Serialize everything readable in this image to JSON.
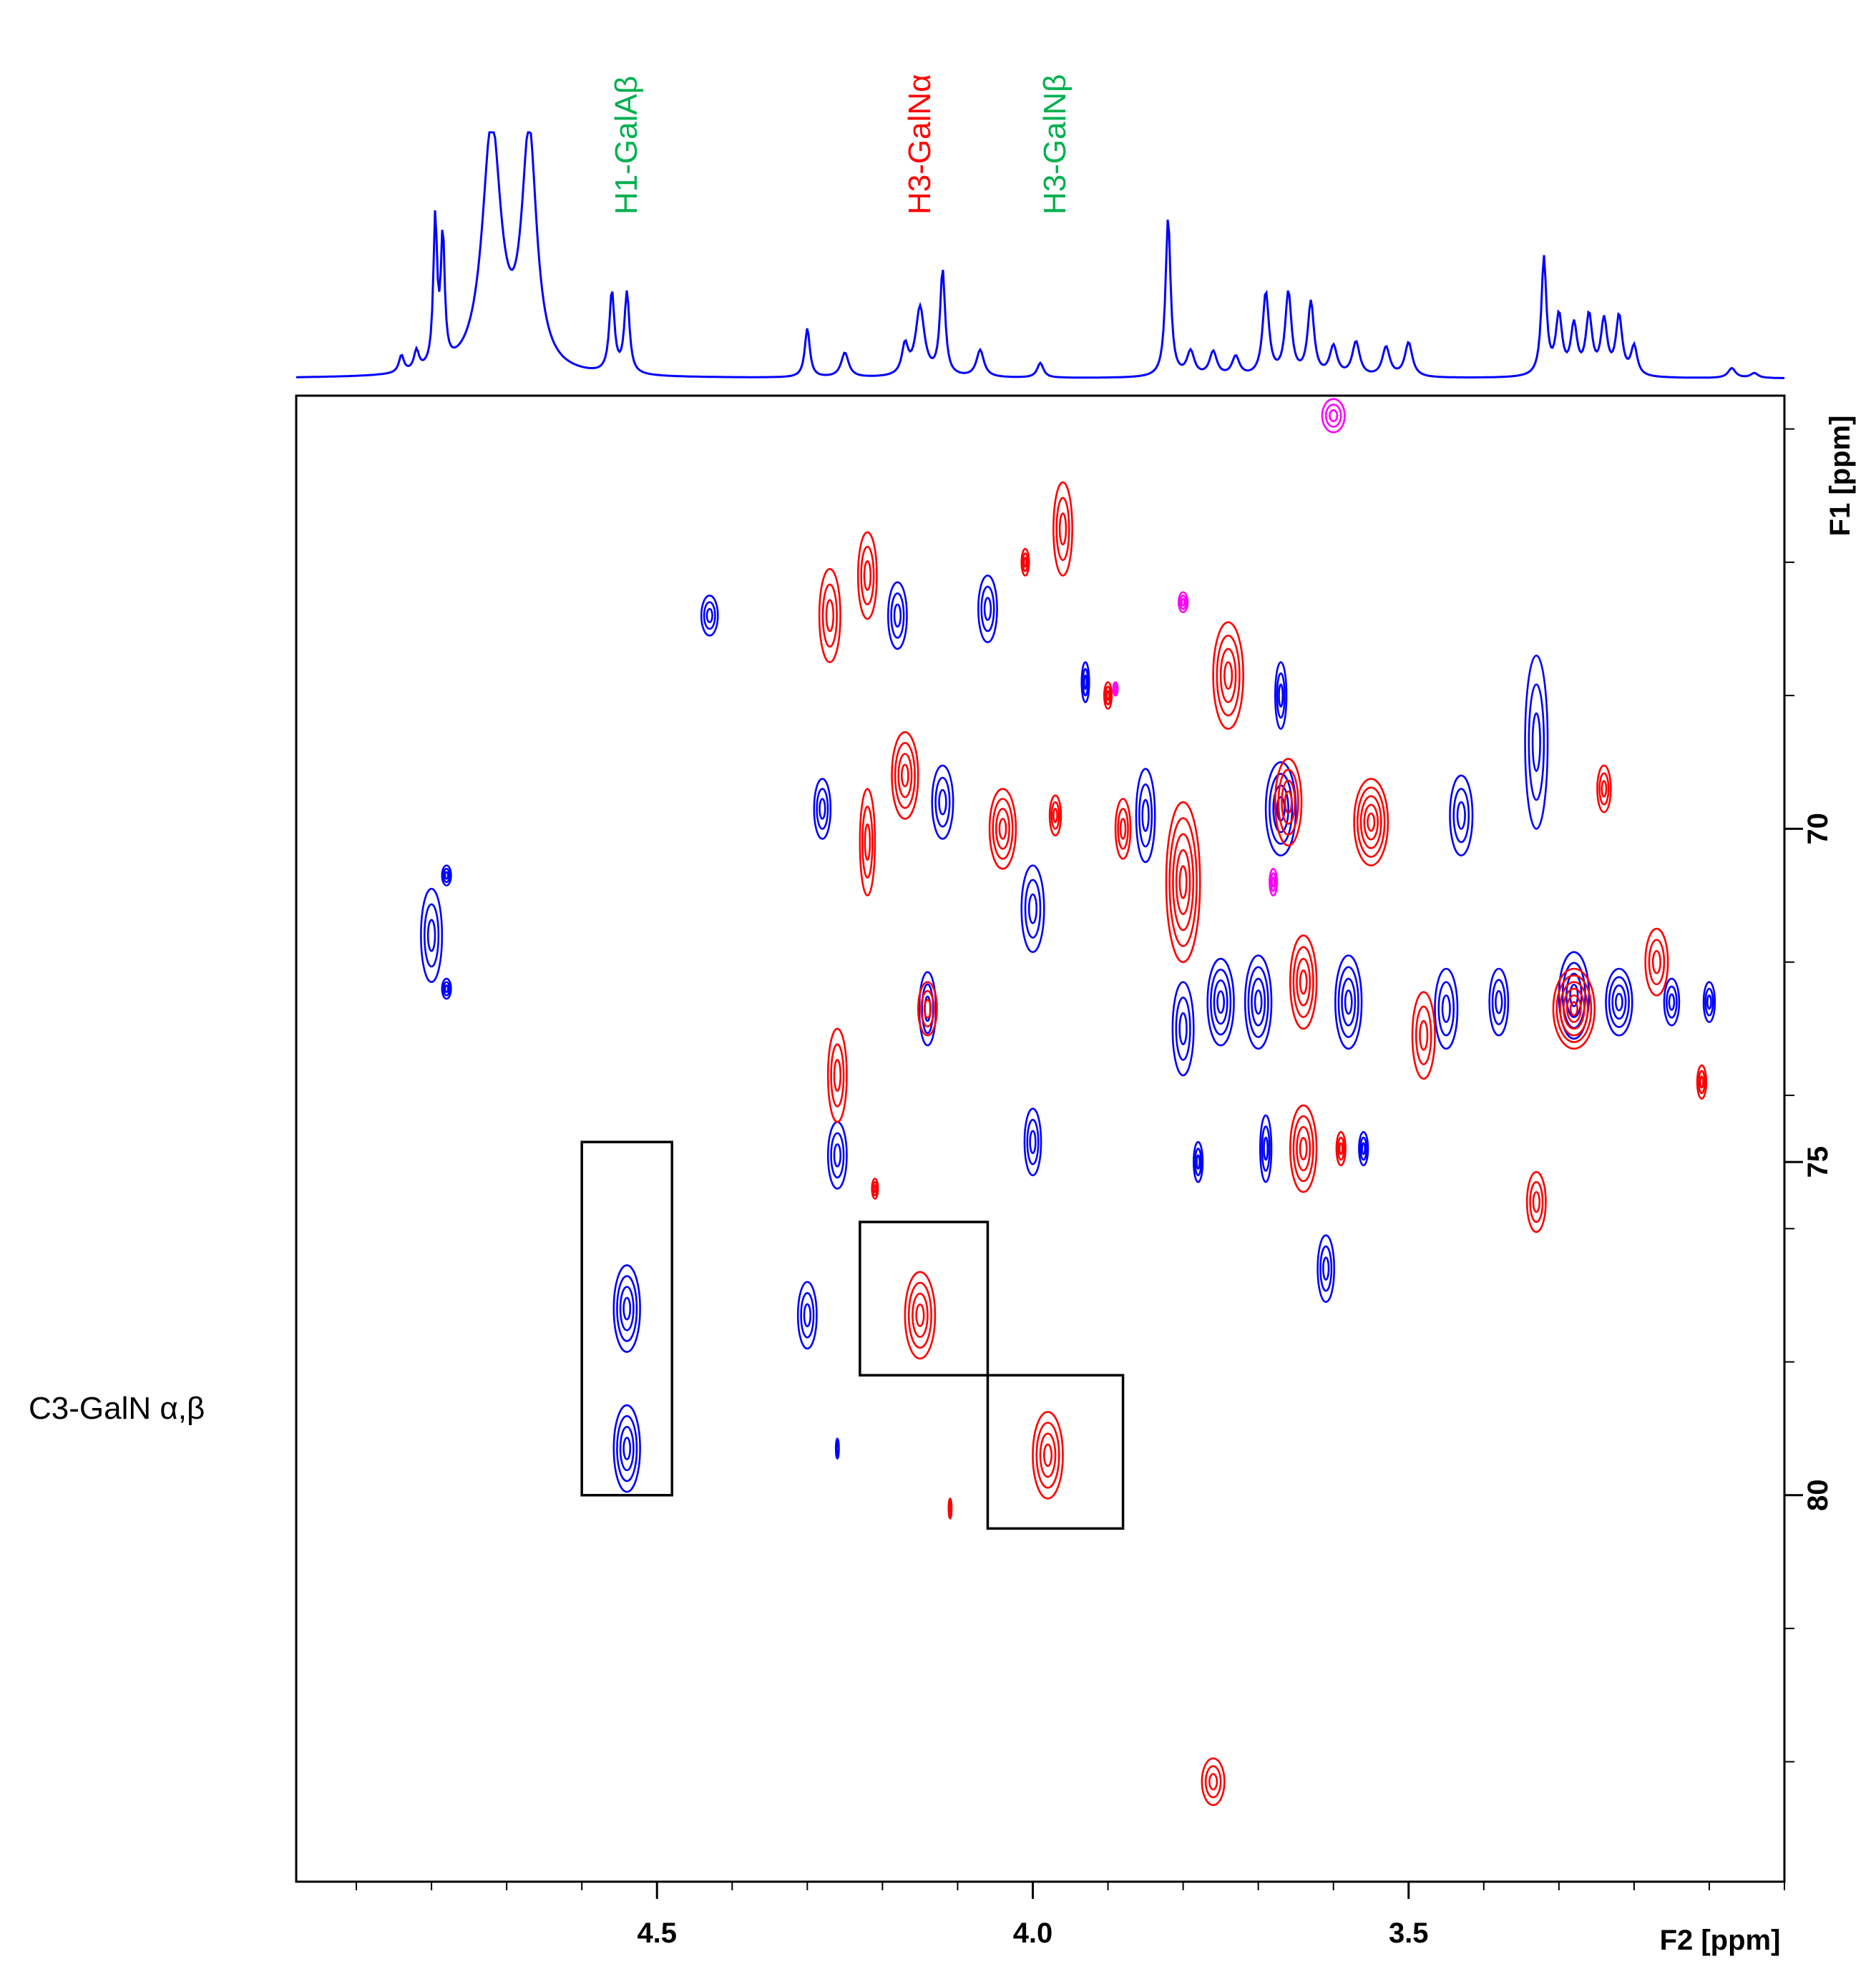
{
  "chart_data": {
    "type": "2d-nmr-hsqc",
    "title": "",
    "x_axis": {
      "label": "F2 [ppm]",
      "range": [
        4.98,
        3.0
      ],
      "ticks": [
        4.5,
        4.0,
        3.5
      ],
      "tick_labels": [
        "4.5",
        "4.0",
        "3.5"
      ],
      "minor_step": 0.1
    },
    "y_axis": {
      "label": "F1 [ppm]",
      "range": [
        63.5,
        85.8
      ],
      "ticks": [
        70,
        75,
        80
      ],
      "tick_labels": [
        "70",
        "75",
        "80"
      ],
      "minor_step": 2
    },
    "side_label": "C3-GalN α,β",
    "peak_labels": [
      {
        "text": "H1-GalAβ",
        "ppm": 4.54,
        "color": "#00b050"
      },
      {
        "text": "H3-GalNα",
        "ppm": 4.15,
        "color": "#ff0000"
      },
      {
        "text": "H3-GalNβ",
        "ppm": 3.97,
        "color": "#00b050"
      }
    ],
    "series_colors": {
      "positive": "#0000ff",
      "negative": "#ff0000",
      "other": "#ff00ff",
      "spectrum": "#0000ff",
      "boxes": "#000000"
    },
    "highlight_boxes": [
      {
        "x": [
          4.6,
          4.48
        ],
        "y": [
          74.7,
          80.0
        ]
      },
      {
        "x": [
          4.23,
          4.06
        ],
        "y": [
          75.9,
          78.2
        ]
      },
      {
        "x": [
          4.06,
          3.88
        ],
        "y": [
          78.2,
          80.5
        ]
      }
    ],
    "blue_peaks": [
      [
        4.8,
        71.6,
        0.028,
        1.4
      ],
      [
        4.78,
        70.7,
        0.012,
        0.3
      ],
      [
        4.78,
        72.4,
        0.012,
        0.3
      ],
      [
        4.54,
        77.2,
        0.035,
        1.3
      ],
      [
        4.54,
        79.3,
        0.035,
        1.3
      ],
      [
        4.43,
        66.8,
        0.022,
        0.6
      ],
      [
        4.3,
        77.3,
        0.025,
        1.0
      ],
      [
        4.26,
        74.9,
        0.025,
        1.0
      ],
      [
        4.26,
        79.3,
        0.004,
        0.3
      ],
      [
        4.28,
        69.7,
        0.022,
        0.9
      ],
      [
        4.18,
        66.8,
        0.025,
        1.0
      ],
      [
        4.12,
        69.6,
        0.028,
        1.1
      ],
      [
        4.14,
        72.7,
        0.022,
        1.1
      ],
      [
        4.06,
        66.7,
        0.025,
        1.0
      ],
      [
        4.0,
        74.7,
        0.022,
        1.0
      ],
      [
        4.0,
        71.2,
        0.03,
        1.3
      ],
      [
        3.93,
        67.8,
        0.01,
        0.6
      ],
      [
        3.85,
        69.8,
        0.025,
        1.4
      ],
      [
        3.8,
        73.0,
        0.028,
        1.4
      ],
      [
        3.75,
        72.6,
        0.035,
        1.3
      ],
      [
        3.78,
        75.0,
        0.012,
        0.6
      ],
      [
        3.7,
        72.6,
        0.035,
        1.4
      ],
      [
        3.69,
        74.8,
        0.015,
        1.0
      ],
      [
        3.67,
        69.7,
        0.04,
        1.4
      ],
      [
        3.67,
        68.0,
        0.015,
        1.0
      ],
      [
        3.61,
        76.6,
        0.022,
        1.0
      ],
      [
        3.58,
        72.6,
        0.035,
        1.4
      ],
      [
        3.56,
        74.8,
        0.012,
        0.5
      ],
      [
        3.45,
        72.7,
        0.03,
        1.2
      ],
      [
        3.43,
        69.8,
        0.03,
        1.2
      ],
      [
        3.38,
        72.6,
        0.025,
        1.0
      ],
      [
        3.33,
        68.7,
        0.03,
        2.6
      ],
      [
        3.28,
        72.5,
        0.04,
        1.3
      ],
      [
        3.22,
        72.6,
        0.035,
        1.0
      ],
      [
        3.15,
        72.6,
        0.02,
        0.7
      ],
      [
        3.1,
        72.6,
        0.015,
        0.6
      ]
    ],
    "red_peaks": [
      [
        4.27,
        66.8,
        0.028,
        1.4
      ],
      [
        4.22,
        66.2,
        0.025,
        1.3
      ],
      [
        4.17,
        69.2,
        0.035,
        1.3
      ],
      [
        4.22,
        70.2,
        0.02,
        1.6
      ],
      [
        4.04,
        70.0,
        0.035,
        1.2
      ],
      [
        3.97,
        69.8,
        0.015,
        0.6
      ],
      [
        3.8,
        70.8,
        0.045,
        2.4
      ],
      [
        3.74,
        67.7,
        0.04,
        1.6
      ],
      [
        3.66,
        69.6,
        0.035,
        1.3
      ],
      [
        3.64,
        72.3,
        0.035,
        1.4
      ],
      [
        3.55,
        69.9,
        0.045,
        1.3
      ],
      [
        3.48,
        73.1,
        0.03,
        1.3
      ],
      [
        3.28,
        72.7,
        0.055,
        1.2
      ],
      [
        3.17,
        72.0,
        0.03,
        1.0
      ],
      [
        4.26,
        73.7,
        0.025,
        1.4
      ],
      [
        3.64,
        74.8,
        0.035,
        1.3
      ],
      [
        3.33,
        75.6,
        0.025,
        0.9
      ],
      [
        4.15,
        77.3,
        0.04,
        1.3
      ],
      [
        3.98,
        79.4,
        0.04,
        1.3
      ],
      [
        3.76,
        84.3,
        0.03,
        0.7
      ],
      [
        4.14,
        72.7,
        0.025,
        0.8
      ],
      [
        3.24,
        69.4,
        0.018,
        0.7
      ],
      [
        3.88,
        70.0,
        0.02,
        0.9
      ],
      [
        3.96,
        65.5,
        0.025,
        1.4
      ],
      [
        3.59,
        74.8,
        0.012,
        0.5
      ],
      [
        4.01,
        66.0,
        0.01,
        0.4
      ],
      [
        4.21,
        75.4,
        0.008,
        0.3
      ],
      [
        3.11,
        73.8,
        0.012,
        0.5
      ],
      [
        4.11,
        80.2,
        0.004,
        0.3
      ],
      [
        3.9,
        68.0,
        0.01,
        0.4
      ]
    ],
    "other_peaks": [
      [
        3.6,
        63.8,
        0.03,
        0.5
      ],
      [
        3.8,
        66.6,
        0.012,
        0.3
      ],
      [
        3.68,
        70.8,
        0.01,
        0.4
      ],
      [
        3.89,
        67.9,
        0.006,
        0.2
      ]
    ]
  }
}
